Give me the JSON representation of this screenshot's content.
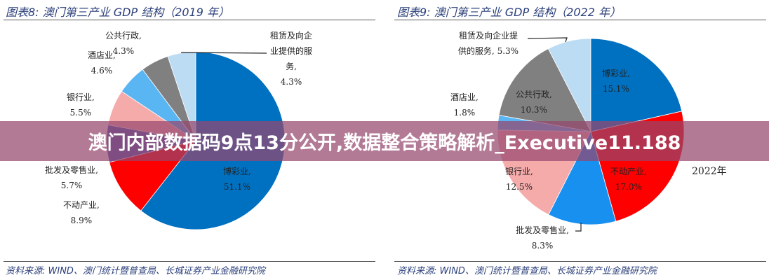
{
  "overlay_title": "澳门内部数据码9点13分公开,数据整合策略解析_Executive11.188",
  "chart_data": [
    {
      "type": "pie",
      "title": "图表8:  澳门第三产业 GDP 结构（2019 年）",
      "source": "资料来源: WIND、澳门统计暨普查局、长城证券产业金融研究院",
      "slices": [
        {
          "label": "博彩业,",
          "value": 51.1,
          "text": "51.1%",
          "color": "#0070c0"
        },
        {
          "label": "不动产业,",
          "value": 8.9,
          "text": "8.9%",
          "color": "#ff0000"
        },
        {
          "label": "批发及零售业,",
          "value": 5.7,
          "text": "5.7%",
          "color": "#4a5fb8"
        },
        {
          "label": "银行业,",
          "value": 5.5,
          "text": "5.5%",
          "color": "#f6abab"
        },
        {
          "label": "酒店业,",
          "value": 4.6,
          "text": "4.6%",
          "color": "#5ab6f2"
        },
        {
          "label": "公共行政,",
          "value": 4.3,
          "text": "4.3%",
          "color": "#808080"
        },
        {
          "label": "租赁及向企业提供的服务,",
          "value": 4.3,
          "text": "4.3%",
          "color": "#bcdcf4"
        }
      ]
    },
    {
      "type": "pie",
      "title": "图表9:  澳门第三产业 GDP 结构（2022 年）",
      "source": "资料来源: WIND、澳门统计暨普查局、长城证券产业金融研究院",
      "annotation": "2022年",
      "slices": [
        {
          "label": "博彩业,",
          "value": 15.1,
          "text": "15.1%",
          "color": "#0070c0"
        },
        {
          "label": "不动产业,",
          "value": 17.0,
          "text": "17.0%",
          "color": "#ff0000"
        },
        {
          "label": "批发及零售业,",
          "value": 8.3,
          "text": "8.3%",
          "color": "#1890f0"
        },
        {
          "label": "银行业,",
          "value": 12.5,
          "text": "12.5%",
          "color": "#f6abab"
        },
        {
          "label": "酒店业,",
          "value": 1.8,
          "text": "1.8%",
          "color": "#5ab6f2"
        },
        {
          "label": "公共行政,",
          "value": 10.3,
          "text": "10.3%",
          "color": "#808080"
        },
        {
          "label": "租赁及向企业提供的服务,",
          "value": 5.3,
          "text": "5.3%",
          "color": "#bcdcf4"
        }
      ]
    }
  ]
}
